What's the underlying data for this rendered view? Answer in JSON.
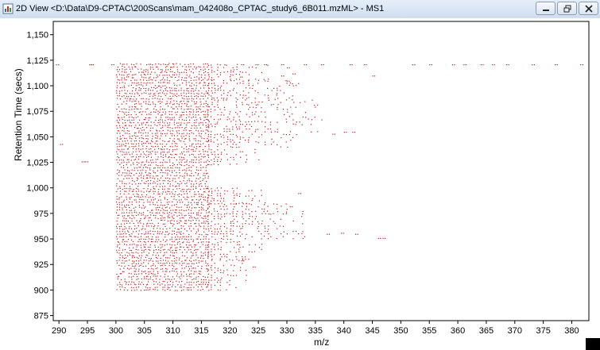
{
  "window": {
    "title": "2D View <D:\\Data\\D9-CPTAC\\200Scans\\mam_042408o_CPTAC_study6_6B011.mzML> - MS1",
    "app_icon": "chart-document-icon",
    "buttons": [
      "minimize-icon",
      "restore-icon",
      "close-icon"
    ]
  },
  "colors": {
    "points": "#cc1111",
    "axis": "#000000",
    "titlebar": "#dbe7f5"
  },
  "chart_data": {
    "type": "scatter",
    "xlabel": "m/z",
    "ylabel": "Retention Time (secs)",
    "xlim": [
      289,
      383
    ],
    "ylim": [
      870,
      1163
    ],
    "x_ticks": [
      290,
      295,
      300,
      305,
      310,
      315,
      320,
      325,
      330,
      335,
      340,
      345,
      350,
      355,
      360,
      365,
      370,
      375,
      380
    ],
    "x_tick_labels": [
      "290",
      "295",
      "300",
      "305",
      "310",
      "315",
      "320",
      "325",
      "330",
      "335",
      "340",
      "345",
      "350",
      "355",
      "360",
      "365",
      "370",
      "375",
      "380"
    ],
    "y_ticks": [
      875,
      900,
      925,
      950,
      975,
      1000,
      1025,
      1050,
      1075,
      1100,
      1125,
      1150
    ],
    "y_tick_labels": [
      "875",
      "900",
      "925",
      "950",
      "975",
      "1,000",
      "1,025",
      "1,050",
      "1,075",
      "1,100",
      "1,125",
      "1,150"
    ],
    "dense_region": {
      "x": [
        300,
        316
      ],
      "y": [
        900,
        1121
      ]
    },
    "sparse_points": [
      [
        289.5,
        1121
      ],
      [
        290.2,
        1043
      ],
      [
        294.0,
        1026
      ],
      [
        294.6,
        1026
      ],
      [
        295.3,
        1121
      ],
      [
        295.6,
        1121
      ],
      [
        299.2,
        1121
      ],
      [
        322.0,
        1121
      ],
      [
        324.5,
        1121
      ],
      [
        326.0,
        1121
      ],
      [
        329.0,
        1121
      ],
      [
        330.0,
        1118
      ],
      [
        333.0,
        1121
      ],
      [
        336.0,
        1121
      ],
      [
        341.0,
        1121
      ],
      [
        343.5,
        1121
      ],
      [
        352.0,
        1121
      ],
      [
        355.0,
        1121
      ],
      [
        359.0,
        1121
      ],
      [
        361.0,
        1121
      ],
      [
        364.0,
        1121
      ],
      [
        366.0,
        1121
      ],
      [
        368.5,
        1121
      ],
      [
        373.0,
        1121
      ],
      [
        377.0,
        1121
      ],
      [
        381.5,
        1121
      ],
      [
        329.0,
        1110
      ],
      [
        331.0,
        1112
      ],
      [
        330.0,
        1105
      ],
      [
        345.0,
        1110
      ],
      [
        338.0,
        1053
      ],
      [
        340.0,
        1055
      ],
      [
        341.5,
        1055
      ],
      [
        346.0,
        951
      ],
      [
        346.8,
        951
      ],
      [
        330.5,
        982
      ],
      [
        332.0,
        995
      ],
      [
        337.0,
        955
      ],
      [
        339.5,
        956
      ],
      [
        342.0,
        955
      ],
      [
        322.0,
        929
      ],
      [
        324.0,
        923
      ]
    ],
    "arms": [
      {
        "y": [
          1106,
          1121
        ],
        "x_end": 327
      },
      {
        "y": [
          1088,
          1105
        ],
        "x_end": 332
      },
      {
        "y": [
          1055,
          1087
        ],
        "x_end": 336
      },
      {
        "y": [
          1040,
          1054
        ],
        "x_end": 333
      },
      {
        "y": [
          1023,
          1039
        ],
        "x_end": 325
      },
      {
        "y": [
          985,
          1000
        ],
        "x_end": 327
      },
      {
        "y": [
          960,
          984
        ],
        "x_end": 333
      },
      {
        "y": [
          950,
          959
        ],
        "x_end": 335
      },
      {
        "y": [
          930,
          949
        ],
        "x_end": 326
      },
      {
        "y": [
          900,
          929
        ],
        "x_end": 323
      }
    ]
  }
}
